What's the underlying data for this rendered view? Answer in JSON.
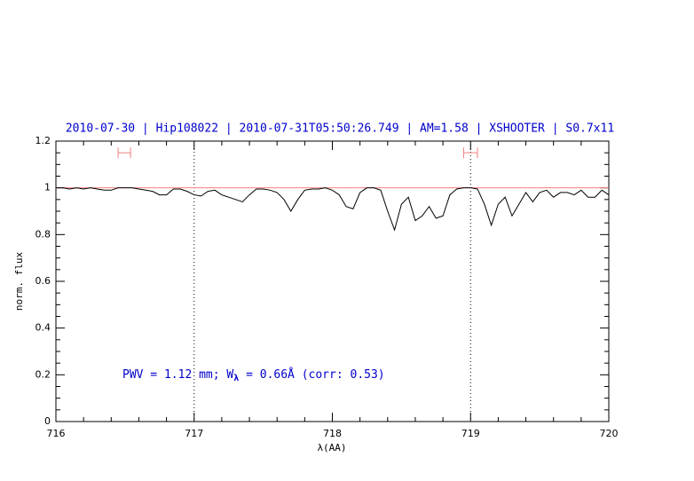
{
  "chart_data": {
    "type": "line",
    "title": "2010-07-30 | Hip108022 | 2010-07-31T05:50:26.749 | AM=1.58 | XSHOOTER | S0.7x11",
    "xlabel": "λ(AA)",
    "ylabel": "norm. flux",
    "annotation": {
      "before": "PWV = 1.12 mm; W",
      "sub": "λ",
      "after": " = 0.66Å  (corr: 0.53)"
    },
    "xlim": [
      716,
      720
    ],
    "ylim": [
      0,
      1.2
    ],
    "xticks": [
      716,
      717,
      718,
      719,
      720
    ],
    "yticks": [
      0,
      0.2,
      0.4,
      0.6,
      0.8,
      1,
      1.2
    ],
    "xminorticks": [
      716.2,
      716.4,
      716.6,
      716.8,
      717.2,
      717.4,
      717.6,
      717.8,
      718.2,
      718.4,
      718.6,
      718.8,
      719.2,
      719.4,
      719.6,
      719.8
    ],
    "yminorticks": [
      0.05,
      0.1,
      0.15,
      0.25,
      0.3,
      0.35,
      0.45,
      0.5,
      0.55,
      0.65,
      0.7,
      0.75,
      0.85,
      0.9,
      0.95,
      1.05,
      1.1,
      1.15
    ],
    "hline": {
      "value": 1,
      "color": "#f08080"
    },
    "vlines": [
      717,
      719
    ],
    "ranges": {
      "y": 1.15,
      "color": "#f08080",
      "spans": [
        [
          716.45,
          716.54
        ],
        [
          718.95,
          719.05
        ]
      ]
    },
    "x": [
      716.0,
      716.05,
      716.1,
      716.15,
      716.2,
      716.25,
      716.3,
      716.35,
      716.4,
      716.45,
      716.5,
      716.55,
      716.6,
      716.65,
      716.7,
      716.75,
      716.8,
      716.85,
      716.9,
      716.95,
      717.0,
      717.05,
      717.1,
      717.15,
      717.2,
      717.25,
      717.3,
      717.35,
      717.4,
      717.45,
      717.5,
      717.55,
      717.6,
      717.65,
      717.7,
      717.75,
      717.8,
      717.85,
      717.9,
      717.95,
      718.0,
      718.05,
      718.1,
      718.15,
      718.2,
      718.25,
      718.3,
      718.35,
      718.4,
      718.45,
      718.5,
      718.55,
      718.6,
      718.65,
      718.7,
      718.75,
      718.8,
      718.85,
      718.9,
      718.95,
      719.0,
      719.05,
      719.1,
      719.15,
      719.2,
      719.25,
      719.3,
      719.35,
      719.4,
      719.45,
      719.5,
      719.55,
      719.6,
      719.65,
      719.7,
      719.75,
      719.8,
      719.85,
      719.9,
      719.95,
      720.0
    ],
    "series": [
      {
        "color": "#000000",
        "values": [
          1.0,
          1.0,
          0.995,
          1.0,
          0.995,
          1.0,
          0.995,
          0.99,
          0.99,
          1.0,
          1.0,
          1.0,
          0.995,
          0.99,
          0.985,
          0.97,
          0.97,
          0.995,
          0.995,
          0.985,
          0.97,
          0.965,
          0.985,
          0.99,
          0.97,
          0.96,
          0.95,
          0.94,
          0.97,
          0.995,
          0.995,
          0.99,
          0.98,
          0.95,
          0.9,
          0.95,
          0.99,
          0.995,
          0.995,
          1.0,
          0.99,
          0.97,
          0.92,
          0.91,
          0.98,
          1.0,
          1.0,
          0.99,
          0.9,
          0.82,
          0.93,
          0.96,
          0.86,
          0.88,
          0.92,
          0.87,
          0.88,
          0.97,
          0.995,
          1.0,
          1.0,
          0.995,
          0.93,
          0.84,
          0.93,
          0.96,
          0.88,
          0.93,
          0.98,
          0.94,
          0.98,
          0.99,
          0.96,
          0.98,
          0.98,
          0.97,
          0.99,
          0.96,
          0.96,
          0.99,
          0.97
        ]
      }
    ]
  }
}
